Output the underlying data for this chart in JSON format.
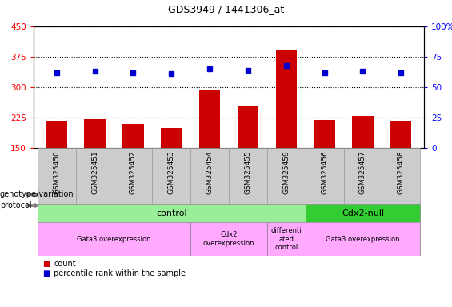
{
  "title": "GDS3949 / 1441306_at",
  "samples": [
    "GSM325450",
    "GSM325451",
    "GSM325452",
    "GSM325453",
    "GSM325454",
    "GSM325455",
    "GSM325459",
    "GSM325456",
    "GSM325457",
    "GSM325458"
  ],
  "counts": [
    218,
    222,
    210,
    200,
    293,
    252,
    390,
    220,
    228,
    218
  ],
  "percentile_ranks": [
    62,
    63,
    62,
    61,
    65,
    64,
    68,
    62,
    63,
    62
  ],
  "ylim_left": [
    150,
    450
  ],
  "ylim_right": [
    0,
    100
  ],
  "yticks_left": [
    150,
    225,
    300,
    375,
    450
  ],
  "yticks_right": [
    0,
    25,
    50,
    75,
    100
  ],
  "bar_color": "#cc0000",
  "dot_color": "#0000cc",
  "genotype_groups": [
    {
      "label": "control",
      "span": [
        0,
        6
      ],
      "color": "#99ee99"
    },
    {
      "label": "Cdx2-null",
      "span": [
        7,
        9
      ],
      "color": "#33cc33"
    }
  ],
  "protocol_groups": [
    {
      "label": "Gata3 overexpression",
      "span": [
        0,
        3
      ],
      "color": "#ffaaff"
    },
    {
      "label": "Cdx2\noverexpression",
      "span": [
        4,
        5
      ],
      "color": "#ffaaff"
    },
    {
      "label": "differenti\nated\ncontrol",
      "span": [
        6,
        6
      ],
      "color": "#ffaaff"
    },
    {
      "label": "Gata3 overexpression",
      "span": [
        7,
        9
      ],
      "color": "#ffaaff"
    }
  ],
  "legend_count_color": "#cc0000",
  "legend_pct_color": "#0000cc",
  "legend_count_label": "count",
  "legend_pct_label": "percentile rank within the sample",
  "left_label_geno": "genotype/variation",
  "left_label_proto": "protocol",
  "bg_color": "#ffffff",
  "grid_color": "#000000",
  "label_box_color": "#cccccc",
  "label_box_edge": "#999999"
}
